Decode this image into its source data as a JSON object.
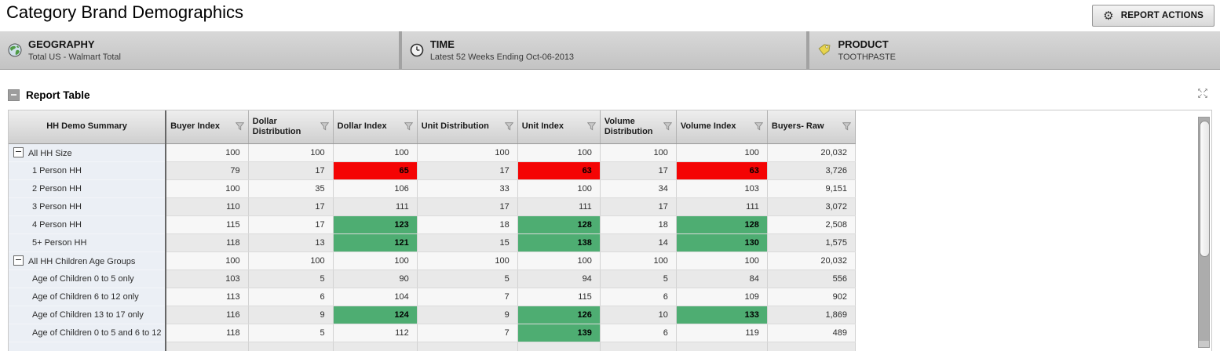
{
  "page": {
    "title": "Category Brand Demographics"
  },
  "report_actions": {
    "label": "REPORT ACTIONS",
    "icon": "gear-icon"
  },
  "filters": [
    {
      "icon": "globe-icon",
      "title": "GEOGRAPHY",
      "value": "Total US - Walmart Total"
    },
    {
      "icon": "clock-icon",
      "title": "TIME",
      "value": "Latest 52 Weeks Ending Oct-06-2013"
    },
    {
      "icon": "tag-icon",
      "title": "PRODUCT",
      "value": "TOOTHPASTE"
    }
  ],
  "report_table": {
    "section_title": "Report Table",
    "collapse_icon": "minus-box-icon",
    "expand_icon": "expand-arrows-icon",
    "columns": [
      {
        "label": "HH Demo Summary",
        "filter": false
      },
      {
        "label": "Buyer Index",
        "filter": true
      },
      {
        "label": "Dollar Distribution",
        "filter": true
      },
      {
        "label": "Dollar Index",
        "filter": true
      },
      {
        "label": "Unit Distribution",
        "filter": true
      },
      {
        "label": "Unit Index",
        "filter": true
      },
      {
        "label": "Volume Distribution",
        "filter": true
      },
      {
        "label": "Volume Index",
        "filter": true
      },
      {
        "label": "Buyers- Raw",
        "filter": true
      }
    ],
    "filter_icon": "funnel-icon",
    "rows": [
      {
        "label": "All HH Size",
        "level": 0,
        "expander": true,
        "cells": [
          {
            "v": "100"
          },
          {
            "v": "100"
          },
          {
            "v": "100"
          },
          {
            "v": "100"
          },
          {
            "v": "100"
          },
          {
            "v": "100"
          },
          {
            "v": "100"
          },
          {
            "v": "20,032"
          }
        ]
      },
      {
        "label": "1 Person HH",
        "level": 1,
        "cells": [
          {
            "v": "79"
          },
          {
            "v": "17"
          },
          {
            "v": "65",
            "h": "red"
          },
          {
            "v": "17"
          },
          {
            "v": "63",
            "h": "red"
          },
          {
            "v": "17"
          },
          {
            "v": "63",
            "h": "red"
          },
          {
            "v": "3,726"
          }
        ]
      },
      {
        "label": "2 Person HH",
        "level": 1,
        "cells": [
          {
            "v": "100"
          },
          {
            "v": "35"
          },
          {
            "v": "106"
          },
          {
            "v": "33"
          },
          {
            "v": "100"
          },
          {
            "v": "34"
          },
          {
            "v": "103"
          },
          {
            "v": "9,151"
          }
        ]
      },
      {
        "label": "3 Person HH",
        "level": 1,
        "cells": [
          {
            "v": "110"
          },
          {
            "v": "17"
          },
          {
            "v": "111"
          },
          {
            "v": "17"
          },
          {
            "v": "111"
          },
          {
            "v": "17"
          },
          {
            "v": "111"
          },
          {
            "v": "3,072"
          }
        ]
      },
      {
        "label": "4 Person HH",
        "level": 1,
        "cells": [
          {
            "v": "115"
          },
          {
            "v": "17"
          },
          {
            "v": "123",
            "h": "green"
          },
          {
            "v": "18"
          },
          {
            "v": "128",
            "h": "green"
          },
          {
            "v": "18"
          },
          {
            "v": "128",
            "h": "green"
          },
          {
            "v": "2,508"
          }
        ]
      },
      {
        "label": "5+ Person HH",
        "level": 1,
        "cells": [
          {
            "v": "118"
          },
          {
            "v": "13"
          },
          {
            "v": "121",
            "h": "green"
          },
          {
            "v": "15"
          },
          {
            "v": "138",
            "h": "green"
          },
          {
            "v": "14"
          },
          {
            "v": "130",
            "h": "green"
          },
          {
            "v": "1,575"
          }
        ]
      },
      {
        "label": "All HH Children Age Groups",
        "level": 0,
        "expander": true,
        "cells": [
          {
            "v": "100"
          },
          {
            "v": "100"
          },
          {
            "v": "100"
          },
          {
            "v": "100"
          },
          {
            "v": "100"
          },
          {
            "v": "100"
          },
          {
            "v": "100"
          },
          {
            "v": "20,032"
          }
        ]
      },
      {
        "label": "Age of Children 0 to 5 only",
        "level": 1,
        "cells": [
          {
            "v": "103"
          },
          {
            "v": "5"
          },
          {
            "v": "90"
          },
          {
            "v": "5"
          },
          {
            "v": "94"
          },
          {
            "v": "5"
          },
          {
            "v": "84"
          },
          {
            "v": "556"
          }
        ]
      },
      {
        "label": "Age of Children 6 to 12 only",
        "level": 1,
        "cells": [
          {
            "v": "113"
          },
          {
            "v": "6"
          },
          {
            "v": "104"
          },
          {
            "v": "7"
          },
          {
            "v": "115"
          },
          {
            "v": "6"
          },
          {
            "v": "109"
          },
          {
            "v": "902"
          }
        ]
      },
      {
        "label": "Age of Children 13 to 17 only",
        "level": 1,
        "cells": [
          {
            "v": "116"
          },
          {
            "v": "9"
          },
          {
            "v": "124",
            "h": "green"
          },
          {
            "v": "9"
          },
          {
            "v": "126",
            "h": "green"
          },
          {
            "v": "10"
          },
          {
            "v": "133",
            "h": "green"
          },
          {
            "v": "1,869"
          }
        ]
      },
      {
        "label": "Age of Children 0 to 5 and 6 to 12",
        "level": 1,
        "cells": [
          {
            "v": "118"
          },
          {
            "v": "5"
          },
          {
            "v": "112"
          },
          {
            "v": "7"
          },
          {
            "v": "139",
            "h": "green"
          },
          {
            "v": "6"
          },
          {
            "v": "119"
          },
          {
            "v": "489"
          }
        ]
      }
    ]
  },
  "colors": {
    "highlight_red": "#f40404",
    "highlight_green": "#4ead72",
    "row_base": "#f7f7f7",
    "row_alt": "#e9e9e9",
    "rowhead_bg": "#ebeff5"
  }
}
